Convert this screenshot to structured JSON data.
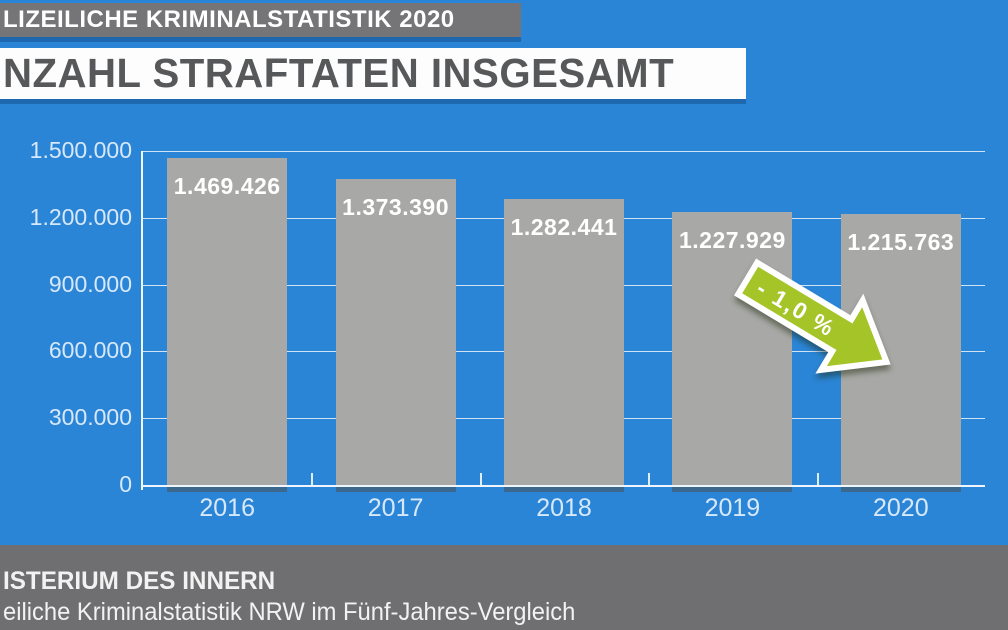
{
  "header": {
    "kicker": "LIZEILICHE KRIMINALSTATISTIK 2020",
    "title": "NZAHL STRAFTATEN INSGESAMT"
  },
  "chart_data": {
    "type": "bar",
    "categories": [
      "2016",
      "2017",
      "2018",
      "2019",
      "2020"
    ],
    "values": [
      1469426,
      1373390,
      1282441,
      1227929,
      1215763
    ],
    "value_labels": [
      "1.469.426",
      "1.373.390",
      "1.282.441",
      "1.227.929",
      "1.215.763"
    ],
    "ylim": [
      0,
      1500000
    ],
    "y_ticks": [
      {
        "value": 0,
        "label": "0"
      },
      {
        "value": 300000,
        "label": "300.000"
      },
      {
        "value": 600000,
        "label": "600.000"
      },
      {
        "value": 900000,
        "label": "900.000"
      },
      {
        "value": 1200000,
        "label": "1.200.000"
      },
      {
        "value": 1500000,
        "label": "1.500.000"
      }
    ],
    "grid": true,
    "legend": false,
    "annotation": {
      "text": "- 1,0 %",
      "shape": "arrow-down-right",
      "between_categories": [
        "2019",
        "2020"
      ],
      "color": "#a4c427"
    }
  },
  "footer": {
    "line1": "ISTERIUM DES INNERN",
    "line2": "eiliche Kriminalstatistik NRW im Fünf-Jahres-Vergleich"
  },
  "colors": {
    "background": "#2b85d6",
    "bar": "#a8a8a6",
    "kicker_bar": "#757577",
    "title_band": "#fdfdfd",
    "title_text": "#57585a",
    "axis_label": "#d7e8fa",
    "footer_background": "#6f6f71",
    "arrow_green": "#a4c427"
  }
}
